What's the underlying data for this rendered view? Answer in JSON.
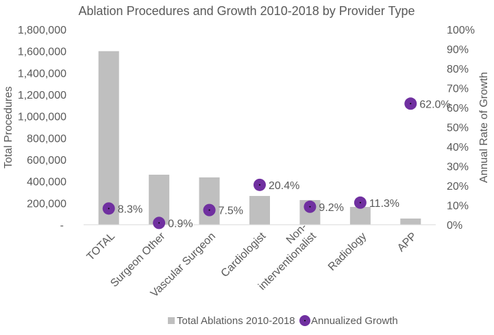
{
  "chart_data": {
    "type": "bar",
    "title": "Ablation Procedures and Growth 2010-2018 by Provider Type",
    "categories": [
      "TOTAL",
      "Surgeon Other",
      "Vascular Surgeon",
      "Cardiologist",
      "Non-interventionalist",
      "Radiology",
      "APP"
    ],
    "category_lines": [
      [
        "TOTAL"
      ],
      [
        "Surgeon Other"
      ],
      [
        "Vascular Surgeon"
      ],
      [
        "Cardiologist"
      ],
      [
        "Non-",
        "interventionalist"
      ],
      [
        "Radiology"
      ],
      [
        "APP"
      ]
    ],
    "series": [
      {
        "name": "Total Ablations 2010-2018",
        "type": "bar",
        "axis": "left",
        "color": "#BFBFBF",
        "values": [
          1600000,
          461000,
          436000,
          265000,
          227000,
          164000,
          57000
        ]
      },
      {
        "name": "Annualized Growth",
        "type": "scatter",
        "axis": "right",
        "color": "#7030A0",
        "values": [
          8.3,
          0.9,
          7.5,
          20.4,
          9.2,
          11.3,
          62.0
        ],
        "labels": [
          "8.3%",
          "0.9%",
          "7.5%",
          "20.4%",
          "9.2%",
          "11.3%",
          "62.0%"
        ]
      }
    ],
    "ylabel": "Total Procedures",
    "y2label": "Annual Rate of Growth",
    "ylim": [
      0,
      1800000
    ],
    "y2lim": [
      0,
      100
    ],
    "yticks": [
      "-",
      "200,000",
      "400,000",
      "600,000",
      "800,000",
      "1,000,000",
      "1,200,000",
      "1,400,000",
      "1,600,000",
      "1,800,000"
    ],
    "y2ticks": [
      "0%",
      "10%",
      "20%",
      "30%",
      "40%",
      "50%",
      "60%",
      "70%",
      "80%",
      "90%",
      "100%"
    ],
    "grid": false,
    "legend": "bottom"
  }
}
